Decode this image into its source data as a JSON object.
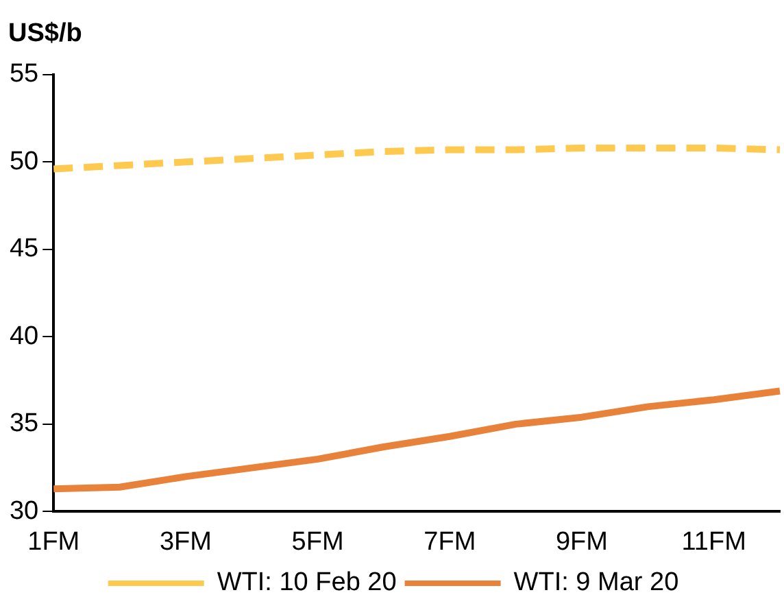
{
  "chart_data": {
    "type": "line",
    "ylabel": "US$/b",
    "categories": [
      "1FM",
      null,
      "3FM",
      null,
      "5FM",
      null,
      "7FM",
      null,
      "9FM",
      null,
      "11FM",
      null
    ],
    "series": [
      {
        "name": "WTI: 10 Feb 20",
        "color": "#fdc94e",
        "line_style": "dashed",
        "values": [
          49.6,
          49.8,
          50.0,
          50.2,
          50.4,
          50.6,
          50.7,
          50.7,
          50.8,
          50.8,
          50.8,
          50.7
        ]
      },
      {
        "name": "WTI: 9 Mar 20",
        "color": "#e8823a",
        "line_style": "solid",
        "values": [
          31.3,
          31.4,
          32.0,
          32.5,
          33.0,
          33.7,
          34.3,
          35.0,
          35.4,
          36.0,
          36.4,
          36.9
        ]
      }
    ],
    "ylim": [
      30,
      55
    ],
    "yticks": [
      30,
      35,
      40,
      45,
      50,
      55
    ],
    "grid": false,
    "legend": "bottom",
    "marker": "none"
  }
}
